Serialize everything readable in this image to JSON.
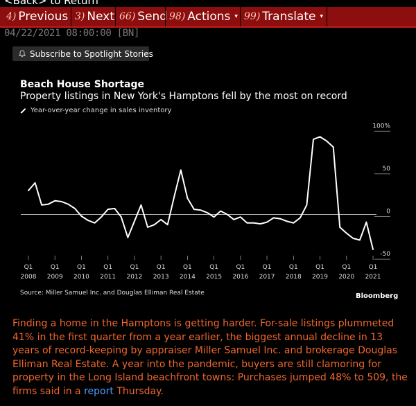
{
  "nav": {
    "back_label": "<Back> to Return"
  },
  "toolbar": {
    "items": [
      {
        "num": "4)",
        "label": "Previous",
        "caret": ""
      },
      {
        "num": "3)",
        "label": "Next",
        "caret": ""
      },
      {
        "num": "66)",
        "label": "Send",
        "caret": ""
      },
      {
        "num": "98)",
        "label": "Actions",
        "caret": "▾"
      },
      {
        "num": "99)",
        "label": "Translate",
        "caret": "▾"
      }
    ]
  },
  "story": {
    "dateline": "04/22/2021 08:00:00 [BN]"
  },
  "subscribe": {
    "label": "Subscribe to Spotlight Stories"
  },
  "chart_data": {
    "type": "line",
    "title": "Beach House Shortage",
    "subtitle": "Property listings in New York's Hamptons fell by the most on record",
    "legend": "Year-over-year change in sales inventory",
    "source": "Source: Miller Samuel Inc. and Douglas Elliman Real Estate",
    "brand": "Bloomberg",
    "ylim": [
      -50,
      100
    ],
    "yticks": [
      {
        "value": 100,
        "label": "100%"
      },
      {
        "value": 50,
        "label": "50"
      },
      {
        "value": 0,
        "label": "0"
      },
      {
        "value": -50,
        "label": "-50"
      }
    ],
    "xticks": [
      {
        "x": 2008,
        "q": "Q1",
        "year": "2008"
      },
      {
        "x": 2009,
        "q": "Q1",
        "year": "2009"
      },
      {
        "x": 2010,
        "q": "Q1",
        "year": "2010"
      },
      {
        "x": 2011,
        "q": "Q1",
        "year": "2011"
      },
      {
        "x": 2012,
        "q": "Q1",
        "year": "2012"
      },
      {
        "x": 2013,
        "q": "Q1",
        "year": "2013"
      },
      {
        "x": 2014,
        "q": "Q1",
        "year": "2014"
      },
      {
        "x": 2015,
        "q": "Q1",
        "year": "2015"
      },
      {
        "x": 2016,
        "q": "Q1",
        "year": "2016"
      },
      {
        "x": 2017,
        "q": "Q1",
        "year": "2017"
      },
      {
        "x": 2018,
        "q": "Q1",
        "year": "2018"
      },
      {
        "x": 2019,
        "q": "Q1",
        "year": "2019"
      },
      {
        "x": 2020,
        "q": "Q1",
        "year": "2020"
      },
      {
        "x": 2021,
        "q": "Q1",
        "year": "2021"
      }
    ],
    "series": [
      {
        "x": [
          2008.0,
          2008.25,
          2008.5,
          2008.75,
          2009.0,
          2009.25,
          2009.5,
          2009.75,
          2010.0,
          2010.25,
          2010.5,
          2010.75,
          2011.0,
          2011.25,
          2011.5,
          2011.75,
          2012.0,
          2012.25,
          2012.5,
          2012.75,
          2013.0,
          2013.25,
          2013.5,
          2013.75,
          2014.0,
          2014.25,
          2014.5,
          2014.75,
          2015.0,
          2015.25,
          2015.5,
          2015.75,
          2016.0,
          2016.25,
          2016.5,
          2016.75,
          2017.0,
          2017.25,
          2017.5,
          2017.75,
          2018.0,
          2018.25,
          2018.5,
          2018.75,
          2019.0,
          2019.25,
          2019.5,
          2019.75,
          2020.0,
          2020.25,
          2020.5,
          2020.75,
          2021.0
        ],
        "values": [
          28,
          37,
          11,
          12,
          16,
          15,
          12,
          7,
          -2,
          -7,
          -10,
          -3,
          6,
          7,
          -3,
          -27,
          -8,
          11,
          -15,
          -12,
          -6,
          -12,
          21,
          52,
          19,
          6,
          5,
          2,
          -3,
          4,
          0,
          -6,
          -3,
          -10,
          -10,
          -11,
          -9,
          -4,
          -5,
          -8,
          -10,
          -4,
          11,
          88,
          91,
          86,
          79,
          -15,
          -22,
          -28,
          -30,
          -9,
          -41
        ]
      }
    ]
  },
  "article": {
    "text": "Finding a home in the Hamptons is getting harder. For-sale listings plummeted 41% in the first quarter from a year earlier, the biggest annual decline in 13 years of record-keeping by appraiser Miller Samuel Inc. and brokerage Douglas Elliman Real Estate. A year into the pandemic, buyers are still clamoring for property in the Long Island beachfront towns: Purchases jumped 48% to 509, the firms said in a ",
    "link_label": "report",
    "tail": " Thursday."
  }
}
